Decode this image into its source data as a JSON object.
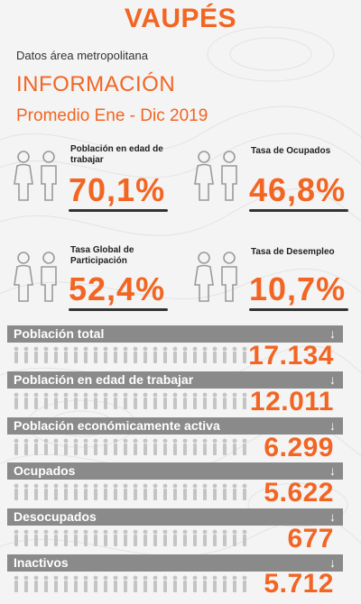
{
  "header": {
    "title": "VAUPÉS",
    "subtitle": "Datos área metropolitana",
    "section": "INFORMACIÓN",
    "period": "Promedio Ene - Dic 2019"
  },
  "stats": [
    {
      "label": "Población en edad de trabajar",
      "value": "70,1%"
    },
    {
      "label": "Tasa de Ocupados",
      "value": "46,8%"
    },
    {
      "label": "Tasa Global de Participación",
      "value": "52,4%"
    },
    {
      "label": "Tasa de Desempleo",
      "value": "10,7%"
    }
  ],
  "rows": [
    {
      "label": "Población total",
      "value": "17.134"
    },
    {
      "label": "Población en edad de trabajar",
      "value": "12.011"
    },
    {
      "label": "Población económicamente activa",
      "value": "6.299"
    },
    {
      "label": "Ocupados",
      "value": "5.622"
    },
    {
      "label": "Desocupados",
      "value": "677"
    },
    {
      "label": "Inactivos",
      "value": "5.712"
    }
  ],
  "icons": {
    "stat_people": "people-pair-icon",
    "row_figures": "people-row-icon",
    "row_arrow": "arrow-down-icon"
  },
  "colors": {
    "accent": "#f26522",
    "bar": "#8a8a8a",
    "text": "#333333",
    "icon_gray": "#bdbdbd"
  }
}
